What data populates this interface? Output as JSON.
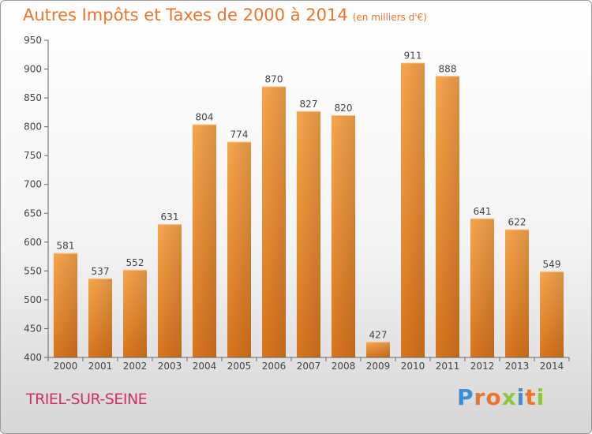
{
  "chart_data": {
    "type": "bar",
    "title": "Autres Impôts et Taxes de 2000 à 2014",
    "unit": "(en milliers d'€)",
    "categories": [
      "2000",
      "2001",
      "2002",
      "2003",
      "2004",
      "2005",
      "2006",
      "2007",
      "2008",
      "2009",
      "2010",
      "2011",
      "2012",
      "2013",
      "2014"
    ],
    "values": [
      581,
      537,
      552,
      631,
      804,
      774,
      870,
      827,
      820,
      427,
      911,
      888,
      641,
      622,
      549
    ],
    "ylim": [
      400,
      950
    ],
    "yticks": [
      400,
      450,
      500,
      550,
      600,
      650,
      700,
      750,
      800,
      850,
      900,
      950
    ],
    "grid": false,
    "bar_color": "#f0953f"
  },
  "footer": {
    "commune": "TRIEL-SUR-SEINE",
    "logo": {
      "letters": [
        {
          "ch": "P",
          "color": "#3a8fd6"
        },
        {
          "ch": "r",
          "color": "#e8762c"
        },
        {
          "ch": "o",
          "color": "#e8762c"
        },
        {
          "ch": "x",
          "color": "#8cc63e"
        },
        {
          "ch": "i",
          "color": "#3a8fd6"
        },
        {
          "ch": "t",
          "color": "#e8762c"
        },
        {
          "ch": "i",
          "color": "#8cc63e"
        }
      ]
    }
  }
}
